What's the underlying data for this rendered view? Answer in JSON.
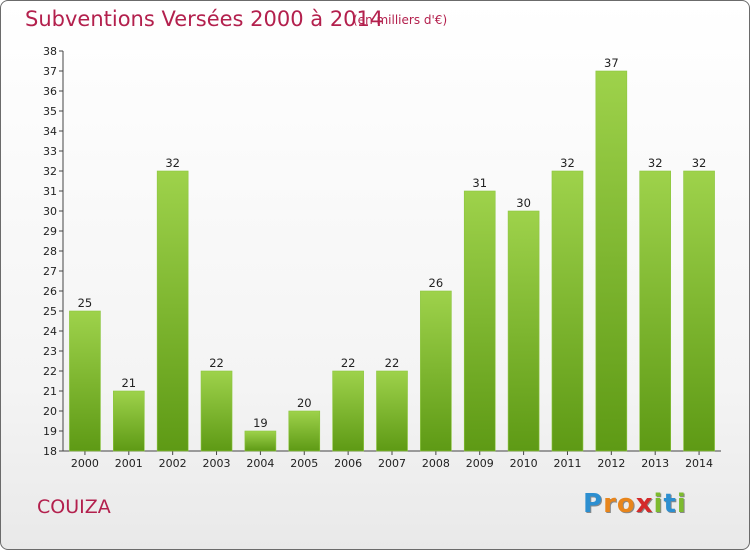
{
  "title": "Subventions Versées 2000 à 2014",
  "subtitle": "(en milliers d'€)",
  "commune": "COUIZA",
  "logo": {
    "letters": [
      "P",
      "r",
      "o",
      "x",
      "i",
      "t",
      "i"
    ],
    "colors": [
      "#2d8fd0",
      "#e8851b",
      "#e8851b",
      "#d42b2b",
      "#7dbb2f",
      "#2d8fd0",
      "#7dbb2f"
    ]
  },
  "chart_data": {
    "type": "bar",
    "categories": [
      "2000",
      "2001",
      "2002",
      "2003",
      "2004",
      "2005",
      "2006",
      "2007",
      "2008",
      "2009",
      "2010",
      "2011",
      "2012",
      "2013",
      "2014"
    ],
    "values": [
      25,
      21,
      32,
      22,
      19,
      20,
      22,
      22,
      26,
      31,
      30,
      32,
      37,
      32,
      32
    ],
    "title": "Subventions Versées 2000 à 2014",
    "ylabel": "",
    "xlabel": "",
    "ylim": [
      18,
      38
    ],
    "yticks": [
      18,
      19,
      20,
      21,
      22,
      23,
      24,
      25,
      26,
      27,
      28,
      29,
      30,
      31,
      32,
      33,
      34,
      35,
      36,
      37,
      38
    ],
    "grid": false,
    "bar_color": "#7fbd2c"
  }
}
